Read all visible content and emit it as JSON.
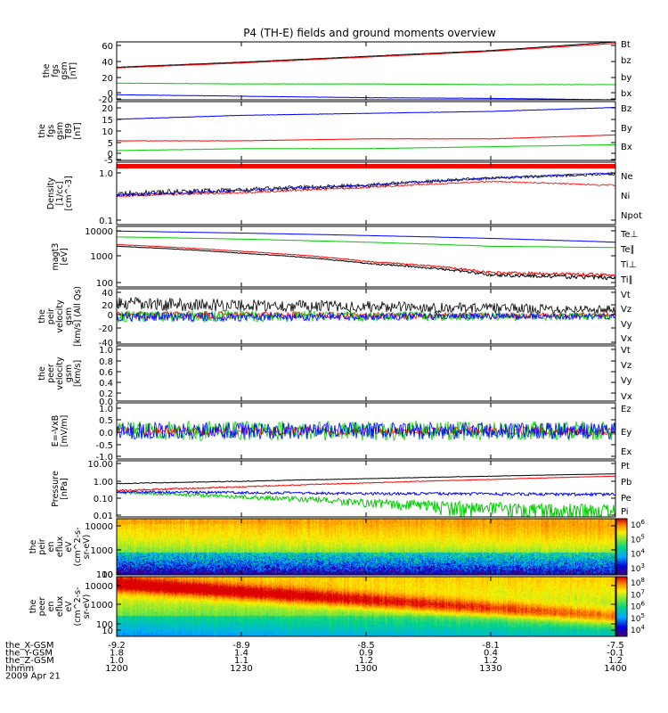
{
  "chart_data": {
    "type": "line",
    "title": "P4 (TH-E) fields and ground moments overview",
    "panels": [
      {
        "ylabel": [
          "the",
          "fgs",
          "gsm",
          "[nT]"
        ],
        "ylim": [
          -20,
          60
        ],
        "yticks": [
          "60",
          "40",
          "20",
          "0",
          "-20"
        ],
        "series": [
          {
            "name": "Bt",
            "color": "#000000",
            "values": [
              25,
              32,
              40,
              48,
              60
            ]
          },
          {
            "name": "bz",
            "color": "#ff0000",
            "values": [
              24,
              31,
              39,
              47,
              58
            ]
          },
          {
            "name": "by",
            "color": "#00cc00",
            "values": [
              3,
              2,
              2,
              1,
              1
            ]
          },
          {
            "name": "bx",
            "color": "#0000ff",
            "values": [
              -13,
              -15,
              -17,
              -18,
              -20
            ]
          }
        ]
      },
      {
        "ylabel": [
          "the",
          "fgs",
          "gsm",
          "T89",
          "[nT]"
        ],
        "ylim": [
          -5,
          25
        ],
        "yticks": [
          "20",
          "15",
          "10",
          "5",
          "0",
          "-5"
        ],
        "series": [
          {
            "name": "Bz",
            "color": "#0000ff",
            "values": [
              16,
              18,
              19,
              20,
              22
            ]
          },
          {
            "name": "By",
            "color": "#00cc00",
            "values": [
              0,
              1,
              1,
              2,
              3
            ]
          },
          {
            "name": "Bx",
            "color": "#ff0000",
            "values": [
              5,
              5,
              6,
              6,
              8
            ]
          }
        ]
      },
      {
        "ylabel": [
          "Density",
          "[1/cc]",
          "[cm^-3]"
        ],
        "ylim": [
          0.1,
          1.5
        ],
        "yticks": [
          "1.0",
          "0.1"
        ],
        "series": [
          {
            "name": "Ne",
            "color": "#ff0000",
            "values": [
              0.35,
              0.4,
              0.5,
              0.65,
              0.55
            ]
          },
          {
            "name": "Ni",
            "color": "#000000",
            "values": [
              0.38,
              0.45,
              0.55,
              0.75,
              0.9
            ]
          },
          {
            "name": "Npot",
            "color": "#0000ff",
            "values": [
              0.36,
              0.44,
              0.55,
              0.75,
              0.95
            ]
          }
        ]
      },
      {
        "ylabel": [
          "magt3",
          "[eV]"
        ],
        "ylim": [
          100,
          10000
        ],
        "yticks": [
          "10000",
          "1000",
          "100"
        ],
        "series": [
          {
            "name": "Te⊥",
            "color": "#ff0000",
            "values": [
              2500,
              1500,
              700,
              300,
              250
            ]
          },
          {
            "name": "Te∥",
            "color": "#000000",
            "values": [
              2200,
              1300,
              600,
              250,
              200
            ]
          },
          {
            "name": "Ti⊥",
            "color": "#0000ff",
            "values": [
              7000,
              6000,
              5000,
              4000,
              3000
            ]
          },
          {
            "name": "Ti∥",
            "color": "#00cc00",
            "values": [
              4500,
              3800,
              3000,
              2200,
              2000
            ]
          }
        ]
      },
      {
        "ylabel": [
          "the",
          "peir",
          "velocity",
          "gsm",
          "[km/s] (All Qs)"
        ],
        "ylim": [
          -40,
          40
        ],
        "yticks": [
          "40",
          "20",
          "0",
          "-20",
          "-40"
        ],
        "series": [
          {
            "name": "Vt",
            "color": "#000000",
            "values": [
              18,
              16,
              14,
              12,
              10
            ]
          },
          {
            "name": "Vz",
            "color": "#ff0000",
            "values": [
              2,
              2,
              1,
              1,
              2
            ]
          },
          {
            "name": "Vy",
            "color": "#00cc00",
            "values": [
              0,
              0,
              0,
              0,
              0
            ]
          },
          {
            "name": "Vx",
            "color": "#0000ff",
            "values": [
              -1,
              -1,
              0,
              0,
              0
            ]
          }
        ]
      },
      {
        "ylabel": [
          "the",
          "peer",
          "velocity",
          "gsm",
          "[km/s]"
        ],
        "ylim": [
          0,
          1
        ],
        "yticks": [
          "1.0",
          "0.8",
          "0.6",
          "0.4",
          "0.2",
          "0.0"
        ],
        "series": [
          {
            "name": "Vt",
            "color": "#000000",
            "values": []
          },
          {
            "name": "Vz",
            "color": "#ff0000",
            "values": []
          },
          {
            "name": "Vy",
            "color": "#00cc00",
            "values": []
          },
          {
            "name": "Vx",
            "color": "#0000ff",
            "values": []
          }
        ]
      },
      {
        "ylabel": [
          "E=-VxB",
          "[mV/m]"
        ],
        "ylim": [
          -1,
          1
        ],
        "yticks": [
          "1.0",
          "0.5",
          "0.0",
          "-0.5",
          "-1.0"
        ],
        "series": [
          {
            "name": "Ez",
            "color": "#ff0000",
            "values": [
              0,
              0,
              0,
              0,
              0
            ]
          },
          {
            "name": "Ey",
            "color": "#00cc00",
            "values": [
              0,
              0,
              0,
              0,
              0
            ]
          },
          {
            "name": "Ex",
            "color": "#0000ff",
            "values": [
              0,
              0,
              0,
              0,
              0
            ]
          }
        ]
      },
      {
        "ylabel": [
          "Pressure",
          "[nPa]"
        ],
        "ylim": [
          0.01,
          10
        ],
        "yticks": [
          "10.00",
          "1.00",
          "0.10",
          "0.01"
        ],
        "series": [
          {
            "name": "Pt",
            "color": "#000000",
            "values": [
              0.6,
              0.8,
              1.1,
              1.5,
              2.0
            ]
          },
          {
            "name": "Pb",
            "color": "#ff0000",
            "values": [
              0.25,
              0.4,
              0.65,
              1.0,
              1.5
            ]
          },
          {
            "name": "Pe",
            "color": "#00cc00",
            "values": [
              0.2,
              0.12,
              0.06,
              0.03,
              0.015
            ]
          },
          {
            "name": "Pi",
            "color": "#0000ff",
            "values": [
              0.22,
              0.2,
              0.18,
              0.17,
              0.16
            ]
          }
        ]
      },
      {
        "type": "heatmap",
        "ylabel": [
          "the",
          "peir",
          "en",
          "eflux",
          "eV",
          "(cm^2-s-",
          "sr-eV)"
        ],
        "ylim": [
          10,
          15000
        ],
        "yticks": [
          "10000",
          "1000",
          "100",
          "10"
        ],
        "colorbar_ticks": [
          "10^6",
          "10^5",
          "10^4",
          "10^3"
        ]
      },
      {
        "type": "heatmap",
        "ylabel": [
          "the",
          "peer",
          "en",
          "eflux",
          "eV",
          "(cm^2-s-",
          "sr-eV)"
        ],
        "ylim": [
          7,
          15000
        ],
        "yticks": [
          "10000",
          "1000",
          "100",
          "10"
        ],
        "colorbar_ticks": [
          "10^8",
          "10^7",
          "10^6",
          "10^5",
          "10^4"
        ]
      }
    ],
    "x": {
      "label": "hhmm",
      "date": "2009 Apr 21",
      "ticks": [
        "1200",
        "1230",
        "1300",
        "1330",
        "1400"
      ]
    },
    "ephemeris": [
      {
        "label": "the_X-GSM",
        "values": [
          "-9.2",
          "-8.9",
          "-8.5",
          "-8.1",
          "-7.5"
        ]
      },
      {
        "label": "the_Y-GSM",
        "values": [
          "1.8",
          "1.4",
          "0.9",
          "0.4",
          "-0.1"
        ]
      },
      {
        "label": "the_Z-GSM",
        "values": [
          "1.0",
          "1.1",
          "1.2",
          "1.2",
          "1.2"
        ]
      }
    ]
  }
}
